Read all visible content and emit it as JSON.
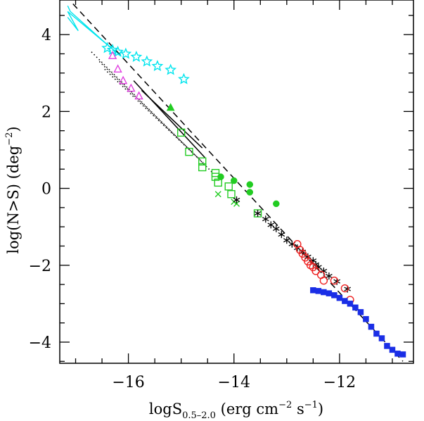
{
  "chart_data": {
    "type": "scatter",
    "xlabel": {
      "main": "logS",
      "sub": "0.5–2.0",
      "rest": " (erg cm",
      "sup1": "−2",
      "mid": " s",
      "sup2": "−1",
      "end": ")"
    },
    "ylabel": {
      "main": "log(N>S) (deg",
      "sup": "−2",
      "end": ")"
    },
    "xlim": [
      -17.3,
      -10.6
    ],
    "ylim": [
      -4.55,
      4.9
    ],
    "x_ticks": [
      -16,
      -14,
      -12
    ],
    "x_tick_labels": [
      "−16",
      "−14",
      "−12"
    ],
    "y_ticks": [
      -4,
      -2,
      0,
      2,
      4
    ],
    "y_tick_labels": [
      "−4",
      "−2",
      "0",
      "2",
      "4"
    ],
    "grid": false,
    "series": [
      {
        "marker": "star-open",
        "color": "#00e5ee",
        "x": [
          -16.4,
          -16.3,
          -16.2,
          -16.05,
          -15.85,
          -15.65,
          -15.45,
          -15.2,
          -14.95
        ],
        "y": [
          3.65,
          3.6,
          3.55,
          3.5,
          3.42,
          3.3,
          3.18,
          3.08,
          2.84
        ]
      },
      {
        "marker": "triangle-open",
        "color": "#e040e0",
        "x": [
          -16.3,
          -16.2,
          -16.1,
          -15.95,
          -15.8
        ],
        "y": [
          3.45,
          3.1,
          2.8,
          2.6,
          2.4
        ]
      },
      {
        "marker": "triangle-filled",
        "color": "#22cc22",
        "x": [
          -15.2
        ],
        "y": [
          2.1
        ]
      },
      {
        "marker": "square-open",
        "color": "#22cc22",
        "x": [
          -15.0,
          -14.85,
          -14.6,
          -14.6,
          -14.35,
          -14.35,
          -14.3,
          -14.1,
          -14.05,
          -13.55
        ],
        "y": [
          1.45,
          0.95,
          0.7,
          0.55,
          0.4,
          0.3,
          0.15,
          0.05,
          -0.15,
          -0.65
        ]
      },
      {
        "marker": "cross",
        "color": "#22cc22",
        "x": [
          -14.3,
          -14.0,
          -13.95
        ],
        "y": [
          -0.15,
          -0.35,
          -0.4
        ]
      },
      {
        "marker": "circle-filled",
        "color": "#22cc22",
        "x": [
          -14.25,
          -14.0,
          -13.7,
          -13.7,
          -13.2
        ],
        "y": [
          0.3,
          0.2,
          0.1,
          -0.1,
          -0.4
        ]
      },
      {
        "marker": "asterisk",
        "color": "#000000",
        "x": [
          -13.95,
          -13.55,
          -13.4,
          -13.3,
          -13.2,
          -13.1,
          -13.0,
          -12.9,
          -12.8,
          -12.7,
          -12.6,
          -12.5,
          -12.45,
          -12.4,
          -12.3,
          -12.2,
          -12.05,
          -11.85
        ],
        "y": [
          -0.3,
          -0.65,
          -0.8,
          -0.95,
          -1.05,
          -1.2,
          -1.35,
          -1.45,
          -1.55,
          -1.65,
          -1.78,
          -1.88,
          -1.98,
          -2.05,
          -2.15,
          -2.28,
          -2.42,
          -2.62
        ]
      },
      {
        "marker": "circle-open",
        "color": "#ee2222",
        "x": [
          -12.8,
          -12.75,
          -12.7,
          -12.65,
          -12.6,
          -12.55,
          -12.5,
          -12.45,
          -12.35,
          -12.3,
          -12.1,
          -11.9,
          -11.8
        ],
        "y": [
          -1.45,
          -1.6,
          -1.7,
          -1.8,
          -1.9,
          -2.0,
          -2.05,
          -2.15,
          -2.25,
          -2.4,
          -2.4,
          -2.6,
          -2.9
        ]
      },
      {
        "marker": "square-filled",
        "color": "#1a2ee6",
        "x": [
          -12.5,
          -12.4,
          -12.3,
          -12.2,
          -12.1,
          -12.0,
          -11.9,
          -11.8,
          -11.7,
          -11.6,
          -11.5,
          -11.4,
          -11.3,
          -11.2,
          -11.1,
          -11.0,
          -10.9,
          -10.8
        ],
        "y": [
          -2.65,
          -2.67,
          -2.7,
          -2.73,
          -2.78,
          -2.85,
          -2.93,
          -3.0,
          -3.1,
          -3.22,
          -3.4,
          -3.6,
          -3.78,
          -3.9,
          -4.1,
          -4.2,
          -4.3,
          -4.32
        ]
      }
    ],
    "lines": [
      {
        "style": "dashed",
        "color": "#000000",
        "x": [
          -17.05,
          -10.8
        ],
        "y": [
          4.8,
          -4.5
        ]
      },
      {
        "style": "dotted",
        "color": "#000000",
        "x": [
          -16.7,
          -14.4
        ],
        "y": [
          3.55,
          0.4
        ]
      },
      {
        "style": "dotted",
        "color": "#000000",
        "x": [
          -16.55,
          -14.5
        ],
        "y": [
          3.3,
          0.55
        ]
      },
      {
        "style": "dotted",
        "color": "#000000",
        "x": [
          -16.45,
          -14.65
        ],
        "y": [
          3.1,
          0.75
        ]
      },
      {
        "style": "solid",
        "color": "#000000",
        "x": [
          -15.9,
          -14.55
        ],
        "y": [
          2.8,
          0.8
        ]
      },
      {
        "style": "solid",
        "color": "#000000",
        "x": [
          -15.75,
          -14.6
        ],
        "y": [
          2.55,
          1.05
        ]
      }
    ],
    "polygons": [
      {
        "style": "outline",
        "color": "#00e5ee",
        "x": [
          -17.15,
          -17.1,
          -16.45,
          -16.15,
          -17.15,
          -16.95,
          -17.15
        ],
        "y": [
          4.75,
          4.6,
          3.8,
          3.45,
          4.6,
          4.1,
          4.45
        ]
      }
    ]
  }
}
